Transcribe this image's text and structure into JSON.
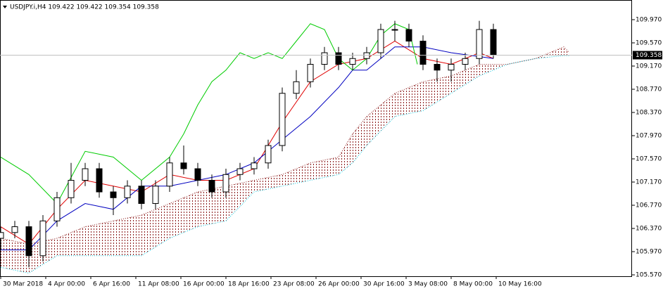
{
  "chart_data": {
    "type": "candlestick",
    "title": "USDJPY.i,H4  109.422 109.422 109.354 109.358",
    "ylim": [
      105.546,
      110.309
    ],
    "yticks": [
      {
        "value": 109.97,
        "label": "109.970"
      },
      {
        "value": 109.57,
        "label": "109.570"
      },
      {
        "value": 109.17,
        "label": "109.170"
      },
      {
        "value": 108.77,
        "label": "108.770"
      },
      {
        "value": 108.37,
        "label": "108.370"
      },
      {
        "value": 107.97,
        "label": "107.970"
      },
      {
        "value": 107.57,
        "label": "107.570"
      },
      {
        "value": 107.17,
        "label": "107.170"
      },
      {
        "value": 106.77,
        "label": "106.770"
      },
      {
        "value": 106.37,
        "label": "106.370"
      },
      {
        "value": 105.97,
        "label": "105.970"
      },
      {
        "value": 105.57,
        "label": "105.570"
      }
    ],
    "xlim": [
      -0.25,
      224.25
    ],
    "xticks": [
      {
        "value": 0,
        "label": "30 Mar 2018"
      },
      {
        "value": 16,
        "label": "4 Apr 00:00"
      },
      {
        "value": 32,
        "label": "6 Apr 16:00"
      },
      {
        "value": 48,
        "label": "11 Apr 08:00"
      },
      {
        "value": 64,
        "label": "16 Apr 00:00"
      },
      {
        "value": 80,
        "label": "18 Apr 16:00"
      },
      {
        "value": 96,
        "label": "23 Apr 08:00"
      },
      {
        "value": 112,
        "label": "26 Apr 00:00"
      },
      {
        "value": 128,
        "label": "30 Apr 16:00"
      },
      {
        "value": 144,
        "label": "3 May 08:00"
      },
      {
        "value": 160,
        "label": "8 May 00:00"
      },
      {
        "value": 176,
        "label": "10 May 16:00"
      }
    ],
    "current_price": 109.358,
    "candles": {
      "x": [
        0,
        5,
        10,
        15,
        20,
        25,
        30,
        35,
        40,
        45,
        50,
        55,
        60,
        65,
        70,
        75,
        80,
        85,
        90,
        95,
        100,
        105,
        110,
        115,
        120,
        125,
        130,
        135,
        140,
        145,
        150,
        155,
        160,
        165,
        170,
        175
      ],
      "open": [
        106.2,
        106.3,
        106.4,
        105.9,
        106.5,
        106.9,
        107.2,
        107.4,
        107.0,
        106.9,
        107.1,
        106.8,
        107.1,
        107.5,
        107.4,
        107.2,
        107.0,
        107.3,
        107.4,
        107.5,
        107.8,
        108.7,
        108.9,
        109.2,
        109.4,
        109.2,
        109.3,
        109.4,
        109.8,
        109.8,
        109.6,
        109.2,
        109.1,
        109.2,
        109.3,
        109.8
      ],
      "high": [
        106.4,
        106.5,
        106.5,
        106.6,
        107.0,
        107.5,
        107.5,
        107.5,
        107.1,
        107.2,
        107.2,
        107.2,
        107.6,
        107.8,
        107.5,
        107.3,
        107.4,
        107.5,
        107.6,
        107.9,
        108.8,
        109.1,
        109.3,
        109.5,
        109.5,
        109.4,
        109.5,
        109.9,
        109.95,
        109.9,
        109.7,
        109.3,
        109.3,
        109.4,
        109.95,
        109.9
      ],
      "low": [
        106.0,
        106.2,
        105.7,
        105.8,
        106.4,
        106.8,
        107.1,
        106.9,
        106.6,
        106.8,
        106.7,
        106.7,
        107.0,
        107.3,
        107.1,
        106.9,
        106.9,
        107.2,
        107.3,
        107.4,
        107.7,
        108.6,
        108.8,
        109.1,
        109.1,
        109.1,
        109.2,
        109.3,
        109.6,
        109.5,
        109.1,
        108.9,
        108.9,
        109.1,
        109.2,
        109.3
      ],
      "close": [
        106.3,
        106.4,
        105.9,
        106.5,
        106.9,
        107.2,
        107.4,
        107.0,
        106.9,
        107.1,
        106.8,
        107.1,
        107.5,
        107.4,
        107.2,
        107.0,
        107.3,
        107.4,
        107.5,
        107.8,
        108.7,
        108.9,
        109.2,
        109.4,
        109.2,
        109.3,
        109.4,
        109.8,
        109.8,
        109.6,
        109.2,
        109.1,
        109.2,
        109.3,
        109.8,
        109.358
      ]
    },
    "lines": [
      {
        "color": "#e00000",
        "x": [
          0,
          10,
          20,
          30,
          40,
          50,
          60,
          70,
          80,
          90,
          100,
          110,
          120,
          130,
          140,
          150,
          160,
          170,
          175
        ],
        "values": [
          106.4,
          106.1,
          106.7,
          107.2,
          107.1,
          107.0,
          107.3,
          107.2,
          107.2,
          107.4,
          108.2,
          108.9,
          109.2,
          109.3,
          109.6,
          109.3,
          109.2,
          109.4,
          109.3
        ]
      },
      {
        "color": "#0000c0",
        "x": [
          0,
          10,
          20,
          30,
          40,
          50,
          60,
          70,
          80,
          90,
          100,
          110,
          120,
          125,
          130,
          140,
          150,
          160,
          175
        ],
        "values": [
          106.0,
          106.0,
          106.5,
          106.8,
          106.7,
          107.1,
          107.1,
          107.2,
          107.3,
          107.5,
          107.9,
          108.3,
          108.8,
          109.1,
          109.1,
          109.5,
          109.5,
          109.4,
          109.3
        ]
      },
      {
        "color": "#00cc00",
        "x": [
          0,
          10,
          20,
          30,
          40,
          50,
          60,
          65,
          70,
          75,
          80,
          85,
          90,
          95,
          100,
          105,
          110,
          115,
          120,
          125,
          130,
          135,
          140,
          145,
          148
        ],
        "values": [
          107.6,
          107.3,
          106.8,
          107.7,
          107.6,
          107.2,
          107.6,
          108.0,
          108.5,
          108.9,
          109.1,
          109.4,
          109.3,
          109.4,
          109.3,
          109.6,
          109.9,
          109.8,
          109.3,
          109.1,
          109.3,
          109.7,
          109.9,
          109.8,
          109.2
        ]
      }
    ],
    "cloud": {
      "color": "#8b1a1a",
      "edge_color": "#00c8e0",
      "x": [
        0,
        10,
        20,
        30,
        40,
        50,
        60,
        70,
        80,
        90,
        100,
        110,
        120,
        125,
        130,
        140,
        150,
        160,
        170,
        180,
        190,
        200,
        202
      ],
      "span_a": [
        106.2,
        106.1,
        106.2,
        106.4,
        106.5,
        106.6,
        106.8,
        107.0,
        107.1,
        107.2,
        107.3,
        107.5,
        107.6,
        108.0,
        108.3,
        108.7,
        108.9,
        109.0,
        109.2,
        109.2,
        109.3,
        109.5,
        109.4
      ],
      "span_b": [
        105.7,
        105.6,
        105.9,
        105.9,
        105.9,
        105.9,
        106.2,
        106.4,
        106.5,
        107.0,
        107.1,
        107.2,
        107.3,
        107.5,
        107.8,
        108.3,
        108.4,
        108.7,
        109.0,
        109.2,
        109.3,
        109.35,
        109.35
      ]
    }
  }
}
